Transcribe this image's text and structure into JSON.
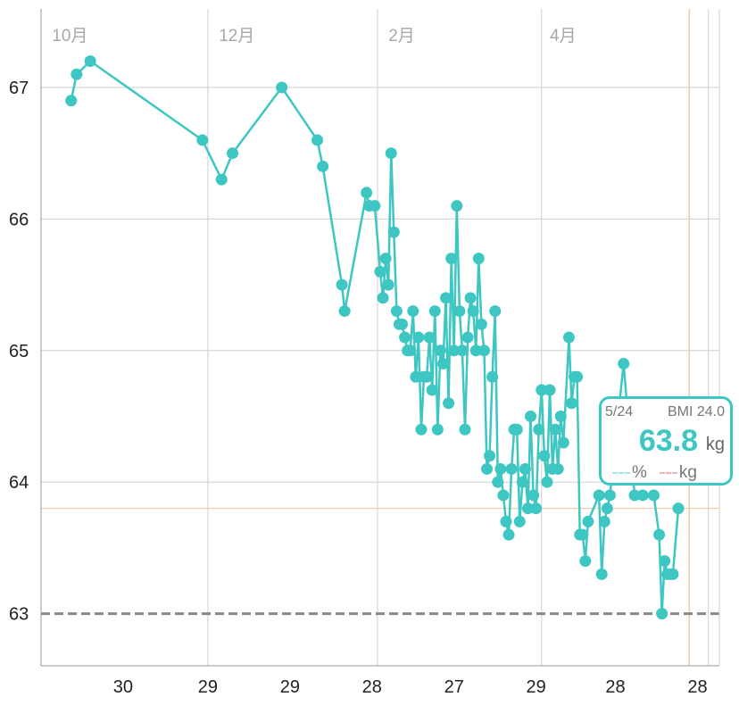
{
  "chart_data": {
    "type": "line",
    "unit": "kg",
    "ylim": [
      62.6,
      67.6
    ],
    "yticks": [
      63,
      64,
      65,
      66,
      67
    ],
    "ytick_labels": [
      "63",
      "64",
      "65",
      "66",
      "67"
    ],
    "xlim": [
      0,
      248
    ],
    "month_labels": [
      {
        "x": 4,
        "label": "10月"
      },
      {
        "x": 65,
        "label": "12月"
      },
      {
        "x": 127,
        "label": "2月"
      },
      {
        "x": 186,
        "label": "4月"
      }
    ],
    "bottom_labels": [
      {
        "x": 30,
        "label": "30"
      },
      {
        "x": 61,
        "label": "29"
      },
      {
        "x": 91,
        "label": "29"
      },
      {
        "x": 121,
        "label": "28"
      },
      {
        "x": 151,
        "label": "27"
      },
      {
        "x": 181,
        "label": "29"
      },
      {
        "x": 210,
        "label": "28"
      },
      {
        "x": 240,
        "label": "28"
      }
    ],
    "vgrid_x": [
      0,
      61,
      123,
      183,
      244
    ],
    "goal_weight": 63.0,
    "selected_weight": 63.8,
    "selected_x": 237,
    "points": [
      [
        11,
        66.9
      ],
      [
        13,
        67.1
      ],
      [
        18,
        67.2
      ],
      [
        59,
        66.6
      ],
      [
        66,
        66.3
      ],
      [
        70,
        66.5
      ],
      [
        88,
        67.0
      ],
      [
        101,
        66.6
      ],
      [
        103,
        66.4
      ],
      [
        110,
        65.5
      ],
      [
        111,
        65.3
      ],
      [
        119,
        66.2
      ],
      [
        120,
        66.1
      ],
      [
        122,
        66.1
      ],
      [
        124,
        65.6
      ],
      [
        125,
        65.4
      ],
      [
        126,
        65.7
      ],
      [
        127,
        65.5
      ],
      [
        128,
        66.5
      ],
      [
        129,
        65.9
      ],
      [
        130,
        65.3
      ],
      [
        131,
        65.2
      ],
      [
        132,
        65.2
      ],
      [
        133,
        65.1
      ],
      [
        134,
        65.0
      ],
      [
        135,
        65.0
      ],
      [
        136,
        65.3
      ],
      [
        137,
        64.8
      ],
      [
        138,
        65.1
      ],
      [
        139,
        64.4
      ],
      [
        140,
        64.8
      ],
      [
        141,
        64.8
      ],
      [
        142,
        65.1
      ],
      [
        143,
        64.7
      ],
      [
        144,
        65.3
      ],
      [
        145,
        64.4
      ],
      [
        146,
        65.0
      ],
      [
        147,
        64.9
      ],
      [
        148,
        65.4
      ],
      [
        149,
        64.6
      ],
      [
        150,
        65.7
      ],
      [
        151,
        65.0
      ],
      [
        152,
        66.1
      ],
      [
        153,
        65.3
      ],
      [
        154,
        65.0
      ],
      [
        155,
        64.4
      ],
      [
        156,
        65.1
      ],
      [
        157,
        65.4
      ],
      [
        158,
        65.3
      ],
      [
        159,
        65.0
      ],
      [
        160,
        65.7
      ],
      [
        161,
        65.2
      ],
      [
        162,
        65.0
      ],
      [
        163,
        64.1
      ],
      [
        164,
        64.2
      ],
      [
        165,
        64.8
      ],
      [
        166,
        65.3
      ],
      [
        167,
        64.0
      ],
      [
        168,
        64.1
      ],
      [
        169,
        63.9
      ],
      [
        170,
        63.7
      ],
      [
        171,
        63.6
      ],
      [
        172,
        64.1
      ],
      [
        173,
        64.4
      ],
      [
        174,
        64.4
      ],
      [
        175,
        63.7
      ],
      [
        176,
        64.0
      ],
      [
        177,
        64.1
      ],
      [
        178,
        63.8
      ],
      [
        179,
        64.5
      ],
      [
        180,
        63.9
      ],
      [
        181,
        63.8
      ],
      [
        182,
        64.4
      ],
      [
        183,
        64.7
      ],
      [
        184,
        64.2
      ],
      [
        185,
        64.0
      ],
      [
        186,
        64.7
      ],
      [
        187,
        64.1
      ],
      [
        188,
        64.4
      ],
      [
        189,
        64.1
      ],
      [
        190,
        64.5
      ],
      [
        191,
        64.3
      ],
      [
        193,
        65.1
      ],
      [
        194,
        64.6
      ],
      [
        195,
        64.8
      ],
      [
        196,
        64.8
      ],
      [
        197,
        63.6
      ],
      [
        198,
        63.6
      ],
      [
        199,
        63.4
      ],
      [
        200,
        63.7
      ],
      [
        204,
        63.9
      ],
      [
        205,
        63.3
      ],
      [
        206,
        63.7
      ],
      [
        207,
        63.8
      ],
      [
        208,
        63.9
      ],
      [
        213,
        64.9
      ],
      [
        217,
        63.9
      ],
      [
        220,
        63.9
      ],
      [
        224,
        63.9
      ],
      [
        226,
        63.6
      ],
      [
        227,
        63.0
      ],
      [
        228,
        63.4
      ],
      [
        229,
        63.3
      ],
      [
        230,
        63.3
      ],
      [
        231,
        63.3
      ],
      [
        233,
        63.8
      ]
    ],
    "colors": {
      "line": "#3ec7c2",
      "grid": "#cfcfcf",
      "goal_line": "#888888",
      "cursor": "#f3c9a0"
    }
  },
  "tooltip": {
    "date": "5/24",
    "bmi": "BMI 24.0",
    "value": "63.8",
    "unit": "kg",
    "legend_pct": "%",
    "legend_kg": "kg"
  }
}
